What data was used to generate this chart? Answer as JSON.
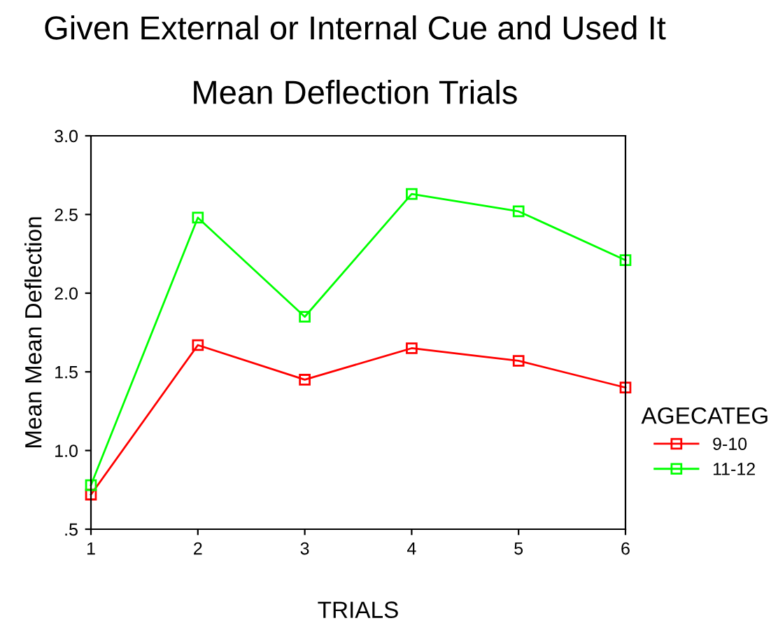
{
  "chart_data": {
    "type": "line",
    "title": "Given External or Internal Cue and Used It",
    "subtitle": "Mean Deflection Trials",
    "xlabel": "TRIALS",
    "ylabel": "Mean Mean Deflection",
    "legend_title": "AGECATEG",
    "x": [
      1,
      2,
      3,
      4,
      5,
      6
    ],
    "series": [
      {
        "name": "9-10",
        "color": "#ff0000",
        "values": [
          0.72,
          1.67,
          1.45,
          1.65,
          1.57,
          1.4
        ]
      },
      {
        "name": "11-12",
        "color": "#00ff00",
        "values": [
          0.78,
          2.48,
          1.85,
          2.63,
          2.52,
          2.21
        ]
      }
    ],
    "xlim": [
      1,
      6
    ],
    "xticks": [
      1,
      2,
      3,
      4,
      5,
      6
    ],
    "ylim": [
      0.5,
      3.0
    ],
    "yticks": [
      {
        "value": 0.5,
        "label": ".5"
      },
      {
        "value": 1.0,
        "label": "1.0"
      },
      {
        "value": 1.5,
        "label": "1.5"
      },
      {
        "value": 2.0,
        "label": "2.0"
      },
      {
        "value": 2.5,
        "label": "2.5"
      },
      {
        "value": 3.0,
        "label": "3.0"
      }
    ],
    "marker": "square",
    "line_style": "solid",
    "grid": false,
    "legend": "right"
  }
}
